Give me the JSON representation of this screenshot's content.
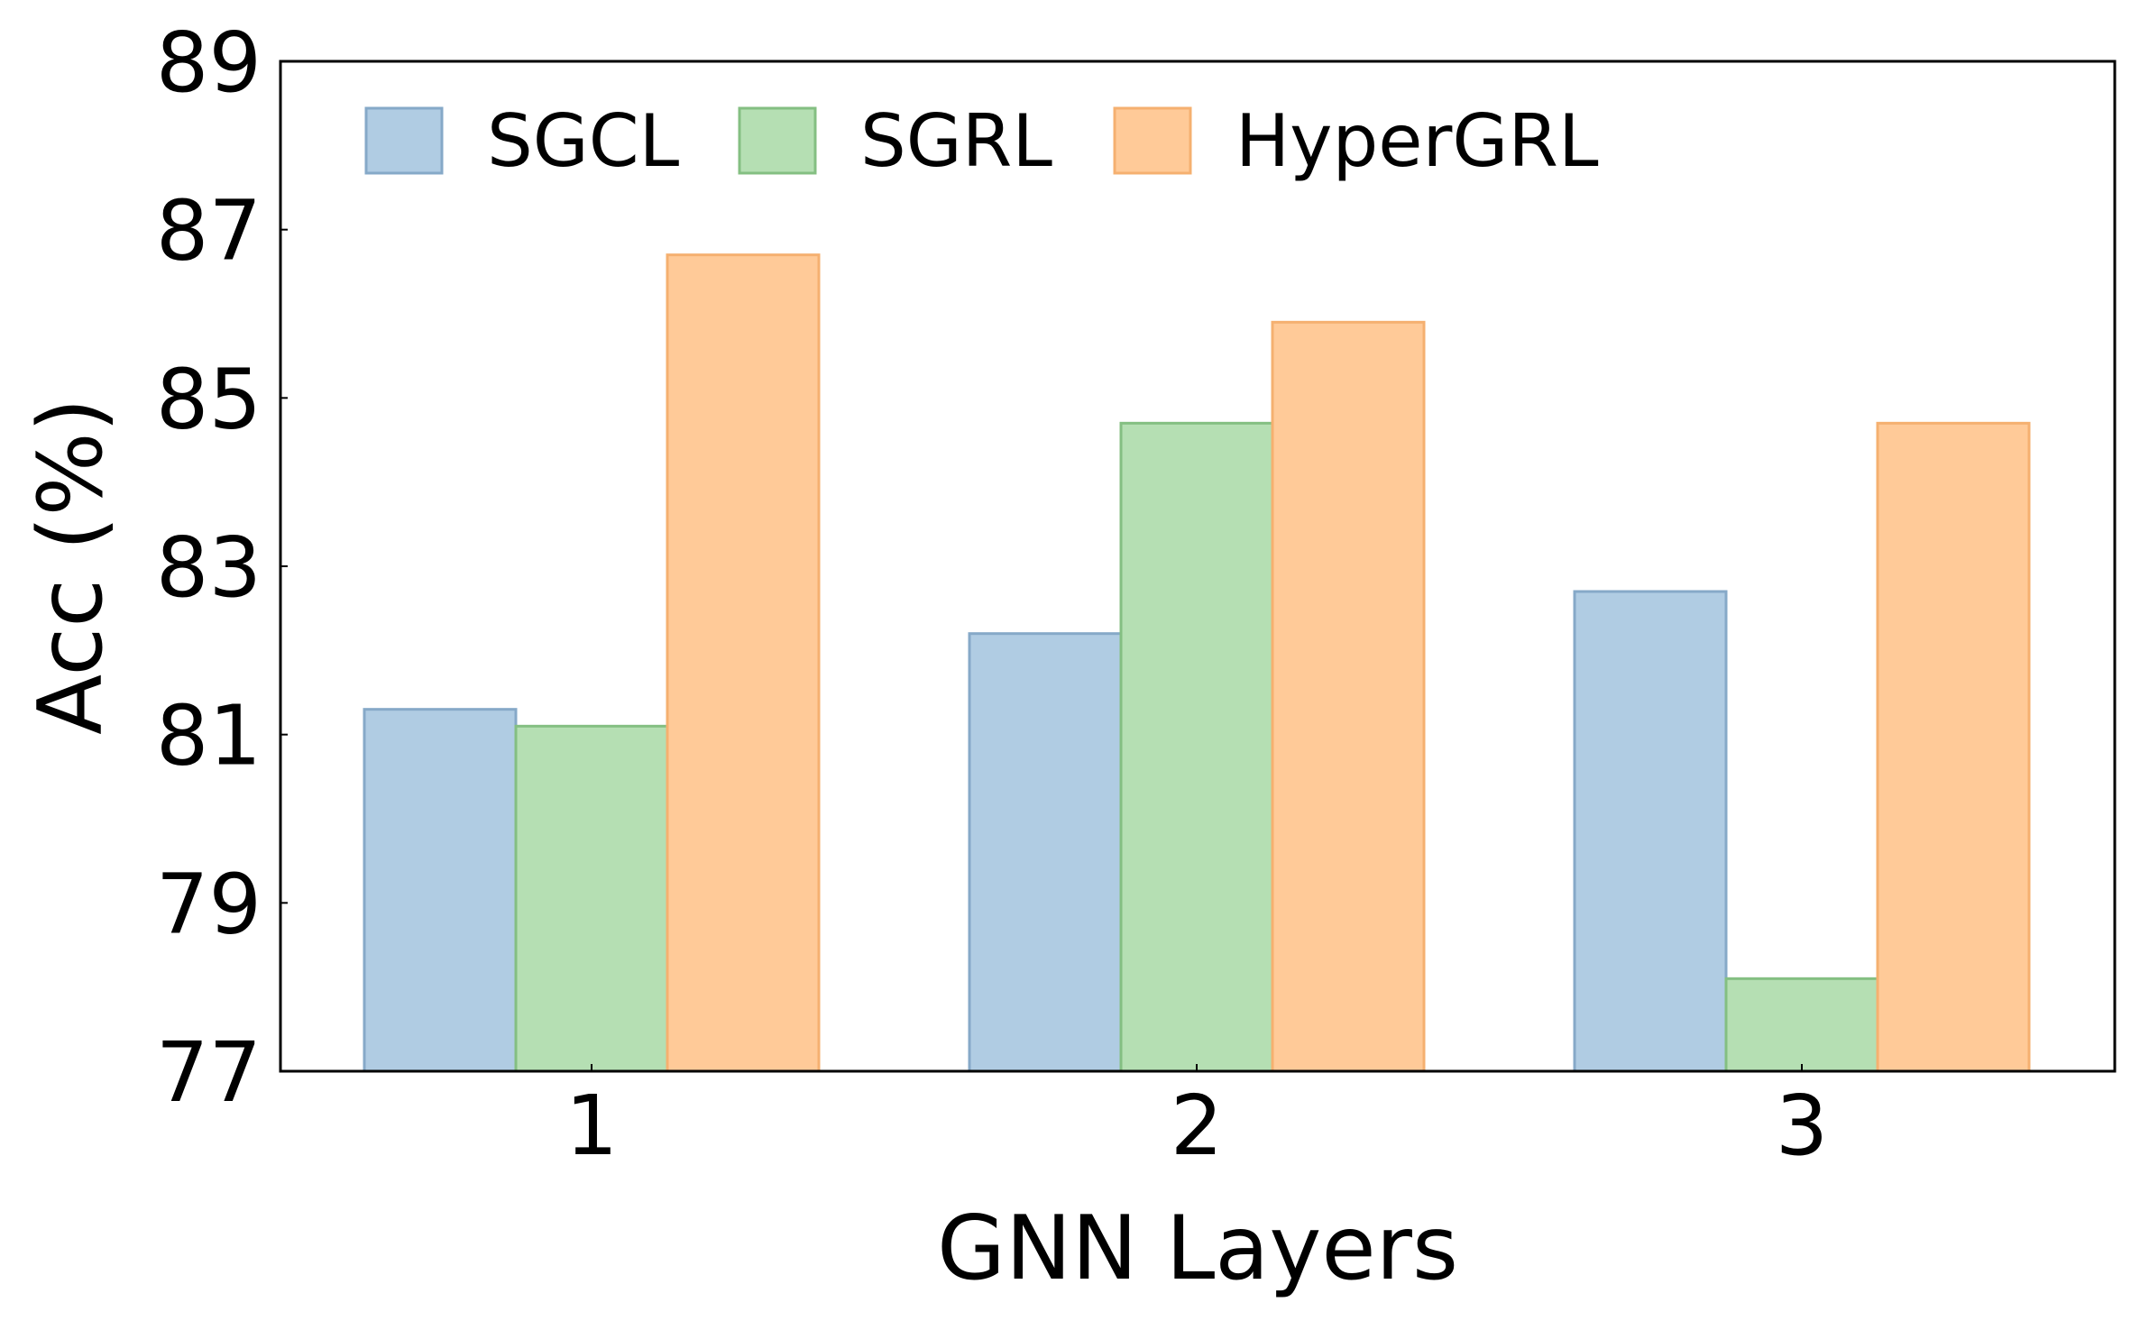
{
  "chart_data": {
    "type": "bar",
    "title": "",
    "xlabel": "GNN Layers",
    "ylabel": "Acc (%)",
    "categories": [
      "1",
      "2",
      "3"
    ],
    "ylim": [
      77,
      89
    ],
    "yticks": [
      77,
      79,
      81,
      83,
      85,
      87,
      89
    ],
    "grid": false,
    "legend_position": "top-left",
    "legend_columns": 3,
    "series": [
      {
        "name": "SGCL",
        "values": [
          81.3,
          82.2,
          82.7
        ],
        "fill": "#b0cce3",
        "stroke": "#86a9c8"
      },
      {
        "name": "SGRL",
        "values": [
          81.1,
          84.7,
          78.1
        ],
        "fill": "#b5dfb3",
        "stroke": "#84bf82"
      },
      {
        "name": "HyperGRL",
        "values": [
          86.7,
          85.9,
          84.7
        ],
        "fill": "#ffca98",
        "stroke": "#f5b070"
      }
    ]
  }
}
